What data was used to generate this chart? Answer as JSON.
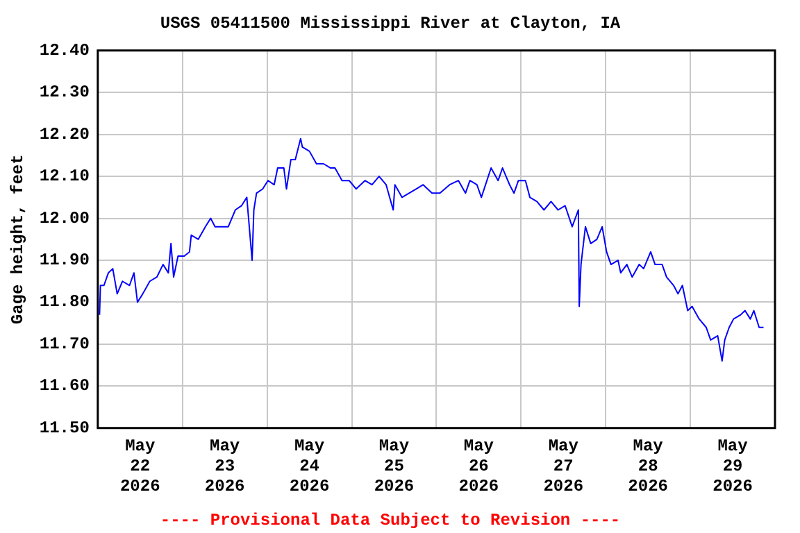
{
  "chart_data": {
    "type": "line",
    "title": "USGS 05411500 Mississippi River at Clayton, IA",
    "ylabel": "Gage height, feet",
    "annotations": [
      "---- Provisional Data Subject to Revision ----"
    ],
    "xlim": [
      "2026-05-22T00:00",
      "2026-05-30T00:00"
    ],
    "xticks": [
      {
        "value": "2026-05-22T12:00",
        "label": "May\n22\n2026"
      },
      {
        "value": "2026-05-23T00:00",
        "label": null
      },
      {
        "value": "2026-05-23T12:00",
        "label": "May\n23\n2026"
      },
      {
        "value": "2026-05-24T00:00",
        "label": null
      },
      {
        "value": "2026-05-24T12:00",
        "label": "May\n24\n2026"
      },
      {
        "value": "2026-05-25T00:00",
        "label": null
      },
      {
        "value": "2026-05-25T12:00",
        "label": "May\n25\n2026"
      },
      {
        "value": "2026-05-26T00:00",
        "label": null
      },
      {
        "value": "2026-05-26T12:00",
        "label": "May\n26\n2026"
      },
      {
        "value": "2026-05-27T00:00",
        "label": null
      },
      {
        "value": "2026-05-27T12:00",
        "label": "May\n27\n2026"
      },
      {
        "value": "2026-05-28T00:00",
        "label": null
      },
      {
        "value": "2026-05-28T12:00",
        "label": "May\n28\n2026"
      },
      {
        "value": "2026-05-29T00:00",
        "label": null
      },
      {
        "value": "2026-05-29T12:00",
        "label": "May\n29\n2026"
      }
    ],
    "ylim": [
      11.5,
      12.4
    ],
    "yticks": [
      {
        "value": 11.5,
        "label": "11.50"
      },
      {
        "value": 11.6,
        "label": "11.60"
      },
      {
        "value": 11.7,
        "label": "11.70"
      },
      {
        "value": 11.8,
        "label": "11.80"
      },
      {
        "value": 11.9,
        "label": "11.90"
      },
      {
        "value": 12.0,
        "label": "12.00"
      },
      {
        "value": 12.1,
        "label": "12.10"
      },
      {
        "value": 12.2,
        "label": "12.20"
      },
      {
        "value": 12.3,
        "label": "12.30"
      },
      {
        "value": 12.4,
        "label": "12.40"
      }
    ],
    "grid": true,
    "legend": false,
    "marker": "none",
    "line_style": "solid",
    "x": [
      "2026-05-22T00:30",
      "2026-05-22T00:45",
      "2026-05-22T01:45",
      "2026-05-22T03:00",
      "2026-05-22T04:15",
      "2026-05-22T05:30",
      "2026-05-22T07:00",
      "2026-05-22T09:00",
      "2026-05-22T10:15",
      "2026-05-22T11:15",
      "2026-05-22T12:45",
      "2026-05-22T14:45",
      "2026-05-22T16:45",
      "2026-05-22T18:30",
      "2026-05-22T20:00",
      "2026-05-22T20:45",
      "2026-05-22T21:30",
      "2026-05-22T22:45",
      "2026-05-23T00:30",
      "2026-05-23T02:00",
      "2026-05-23T02:30",
      "2026-05-23T04:30",
      "2026-05-23T06:30",
      "2026-05-23T08:00",
      "2026-05-23T09:15",
      "2026-05-23T11:00",
      "2026-05-23T13:00",
      "2026-05-23T15:00",
      "2026-05-23T16:45",
      "2026-05-23T18:15",
      "2026-05-23T19:45",
      "2026-05-23T20:15",
      "2026-05-23T21:00",
      "2026-05-23T22:45",
      "2026-05-24T00:15",
      "2026-05-24T02:00",
      "2026-05-24T03:00",
      "2026-05-24T04:45",
      "2026-05-24T05:30",
      "2026-05-24T06:45",
      "2026-05-24T08:00",
      "2026-05-24T09:30",
      "2026-05-24T10:00",
      "2026-05-24T12:00",
      "2026-05-24T14:00",
      "2026-05-24T16:00",
      "2026-05-24T18:00",
      "2026-05-24T19:15",
      "2026-05-24T21:15",
      "2026-05-24T23:15",
      "2026-05-25T01:15",
      "2026-05-25T03:45",
      "2026-05-25T05:45",
      "2026-05-25T07:45",
      "2026-05-25T09:45",
      "2026-05-25T11:45",
      "2026-05-25T12:15",
      "2026-05-25T14:15",
      "2026-05-25T16:15",
      "2026-05-25T18:15",
      "2026-05-25T20:15",
      "2026-05-25T22:45",
      "2026-05-26T01:00",
      "2026-05-26T03:45",
      "2026-05-26T06:15",
      "2026-05-26T08:15",
      "2026-05-26T09:30",
      "2026-05-26T11:30",
      "2026-05-26T12:45",
      "2026-05-26T15:30",
      "2026-05-26T17:30",
      "2026-05-26T18:45",
      "2026-05-26T20:45",
      "2026-05-26T22:00",
      "2026-05-26T23:15",
      "2026-05-27T01:15",
      "2026-05-27T02:30",
      "2026-05-27T04:30",
      "2026-05-27T06:30",
      "2026-05-27T08:30",
      "2026-05-27T10:30",
      "2026-05-27T12:30",
      "2026-05-27T14:30",
      "2026-05-27T16:15",
      "2026-05-27T16:30",
      "2026-05-27T17:00",
      "2026-05-27T18:15",
      "2026-05-27T19:45",
      "2026-05-27T21:30",
      "2026-05-27T23:00",
      "2026-05-28T00:15",
      "2026-05-28T01:30",
      "2026-05-28T03:30",
      "2026-05-28T04:15",
      "2026-05-28T06:00",
      "2026-05-28T07:30",
      "2026-05-28T09:30",
      "2026-05-28T10:45",
      "2026-05-28T12:45",
      "2026-05-28T14:00",
      "2026-05-28T16:00",
      "2026-05-28T17:15",
      "2026-05-28T19:15",
      "2026-05-28T20:30",
      "2026-05-28T21:45",
      "2026-05-28T23:15",
      "2026-05-29T00:30",
      "2026-05-29T02:30",
      "2026-05-29T04:30",
      "2026-05-29T05:45",
      "2026-05-29T07:45",
      "2026-05-29T09:00",
      "2026-05-29T09:45",
      "2026-05-29T11:00",
      "2026-05-29T12:15",
      "2026-05-29T14:15",
      "2026-05-29T15:30",
      "2026-05-29T17:00",
      "2026-05-29T18:00",
      "2026-05-29T19:30",
      "2026-05-29T20:45"
    ],
    "series": [
      {
        "color": "#0000ff",
        "values": [
          11.77,
          11.84,
          11.84,
          11.87,
          11.88,
          11.82,
          11.85,
          11.84,
          11.87,
          11.8,
          11.82,
          11.85,
          11.86,
          11.89,
          11.87,
          11.94,
          11.86,
          11.91,
          11.91,
          11.92,
          11.96,
          11.95,
          11.98,
          12.0,
          11.98,
          11.98,
          11.98,
          12.02,
          12.03,
          12.05,
          11.9,
          12.02,
          12.06,
          12.07,
          12.09,
          12.08,
          12.12,
          12.12,
          12.07,
          12.14,
          12.14,
          12.19,
          12.17,
          12.16,
          12.13,
          12.13,
          12.12,
          12.12,
          12.09,
          12.09,
          12.07,
          12.09,
          12.08,
          12.1,
          12.08,
          12.02,
          12.08,
          12.05,
          12.06,
          12.07,
          12.08,
          12.06,
          12.06,
          12.08,
          12.09,
          12.06,
          12.09,
          12.08,
          12.05,
          12.12,
          12.09,
          12.12,
          12.08,
          12.06,
          12.09,
          12.09,
          12.05,
          12.04,
          12.02,
          12.04,
          12.02,
          12.03,
          11.98,
          12.02,
          11.79,
          11.89,
          11.98,
          11.94,
          11.95,
          11.98,
          11.92,
          11.89,
          11.9,
          11.87,
          11.89,
          11.86,
          11.89,
          11.88,
          11.92,
          11.89,
          11.89,
          11.86,
          11.84,
          11.82,
          11.84,
          11.78,
          11.79,
          11.76,
          11.74,
          11.71,
          11.72,
          11.66,
          11.71,
          11.74,
          11.76,
          11.77,
          11.78,
          11.76,
          11.78,
          11.74,
          11.74
        ]
      }
    ]
  }
}
